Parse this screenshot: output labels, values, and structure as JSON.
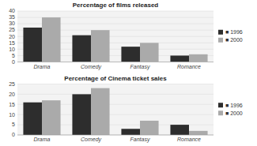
{
  "chart_data": [
    {
      "type": "bar",
      "title": "Percentage of films released",
      "categories": [
        "Drama",
        "Comedy",
        "Fantasy",
        "Romance"
      ],
      "series": [
        {
          "name": "■ 1996",
          "color": "#2d2d2d",
          "values": [
            27,
            21,
            12,
            5
          ]
        },
        {
          "name": "■ 2000",
          "color": "#aaaaaa",
          "values": [
            35,
            25,
            15,
            6
          ]
        }
      ],
      "ylim": [
        0,
        40
      ],
      "yticks": [
        0,
        5,
        10,
        15,
        20,
        25,
        30,
        35,
        40
      ],
      "grid": true,
      "legend": "right"
    },
    {
      "type": "bar",
      "title": "Percentage of Cinema ticket sales",
      "categories": [
        "Drama",
        "Comedy",
        "Fantasy",
        "Romance"
      ],
      "series": [
        {
          "name": "■ 1996",
          "color": "#2d2d2d",
          "values": [
            16,
            20,
            3,
            5
          ]
        },
        {
          "name": "■ 2000",
          "color": "#aaaaaa",
          "values": [
            17,
            23,
            7,
            2
          ]
        }
      ],
      "ylim": [
        0,
        25
      ],
      "yticks": [
        0,
        5,
        10,
        15,
        20,
        25
      ],
      "grid": true,
      "legend": "right"
    }
  ]
}
